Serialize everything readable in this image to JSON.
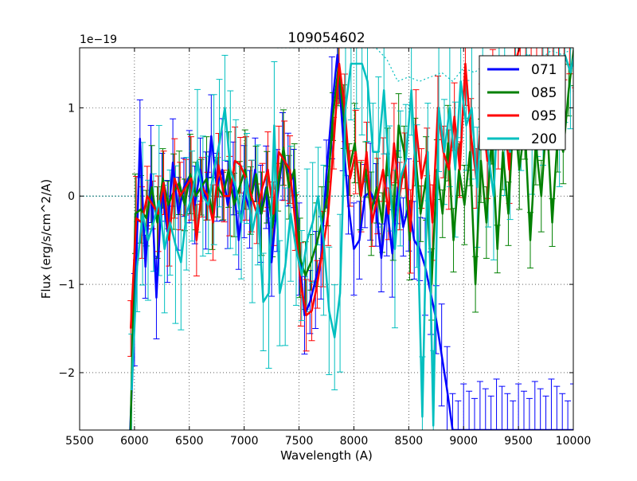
{
  "chart_data": {
    "type": "line",
    "title": "109054602",
    "xlabel": "Wavelength (A)",
    "ylabel": "Flux (erg/s/cm^2/A)",
    "offset_text": "1e−19",
    "xlim": [
      5500,
      10000
    ],
    "ylim": [
      -2.65,
      1.68
    ],
    "xticks": [
      5500,
      6000,
      6500,
      7000,
      7500,
      8000,
      8500,
      9000,
      9500,
      10000
    ],
    "yticks": [
      -2,
      -1,
      0,
      1
    ],
    "ytick_labels": [
      "−2",
      "−1",
      "0",
      "1"
    ],
    "grid": true,
    "legend_position": "top-right",
    "x": [
      5950,
      6000,
      6050,
      6100,
      6150,
      6200,
      6250,
      6300,
      6350,
      6400,
      6450,
      6500,
      6550,
      6600,
      6650,
      6700,
      6750,
      6800,
      6850,
      6900,
      6950,
      7000,
      7050,
      7100,
      7150,
      7200,
      7250,
      7300,
      7350,
      7400,
      7450,
      7500,
      7550,
      7600,
      7650,
      7700,
      7750,
      7800,
      7850,
      7900,
      7950,
      8000,
      8050,
      8100,
      8150,
      8200,
      8250,
      8300,
      8350,
      8400,
      8450,
      8500,
      8550,
      8600,
      8650,
      8700,
      8750,
      8800,
      8850,
      8900,
      8950,
      9000,
      9050,
      9100,
      9150,
      9200,
      9250,
      9300,
      9350,
      9400,
      9450,
      9500,
      9550,
      9600,
      9650,
      9700,
      9750,
      9800,
      9850,
      9900,
      9950,
      10000
    ],
    "series": [
      {
        "name": "071",
        "color": "#0000ff",
        "values": [
          -3.0,
          -1.4,
          0.65,
          -0.8,
          0.25,
          -1.15,
          0.1,
          -0.4,
          0.38,
          -0.2,
          0.1,
          0.22,
          -0.1,
          0.3,
          -0.05,
          0.68,
          0.1,
          0.3,
          -0.1,
          0.2,
          -0.5,
          0.05,
          -0.15,
          0.3,
          -0.2,
          0.1,
          -0.75,
          -0.05,
          0.45,
          0.3,
          0.2,
          -0.6,
          -1.35,
          -1.2,
          -0.95,
          -0.7,
          0.25,
          1.0,
          1.6,
          0.7,
          -0.1,
          -0.6,
          -0.5,
          0.0,
          0.05,
          -0.1,
          -0.7,
          -0.1,
          -0.65,
          0.1,
          -0.35,
          -0.1,
          -0.5,
          -0.6,
          -0.8,
          -1.1,
          -1.4,
          -1.8,
          -2.2,
          -2.65,
          -2.65,
          -2.65,
          -2.65,
          -2.65,
          -2.65,
          -2.65,
          -2.65,
          -2.65,
          -2.65,
          -2.65,
          -2.65,
          -2.65,
          -2.65,
          -2.65,
          -2.65,
          -2.65,
          -2.65,
          -2.65,
          -2.65,
          -2.65,
          -2.65,
          -2.65
        ]
      },
      {
        "name": "085",
        "color": "#008000",
        "values": [
          -3.0,
          -0.2,
          -0.15,
          -0.25,
          0.1,
          -0.3,
          0.2,
          -0.1,
          0.05,
          0.15,
          -0.1,
          0.25,
          0.0,
          0.1,
          0.2,
          -0.2,
          0.1,
          0.0,
          0.3,
          -0.1,
          0.1,
          0.3,
          -0.05,
          0.25,
          -0.2,
          0.1,
          -0.35,
          0.1,
          0.55,
          0.1,
          0.3,
          -0.7,
          -0.9,
          -0.75,
          -0.55,
          -0.3,
          0.0,
          0.9,
          1.45,
          0.9,
          0.3,
          0.6,
          0.0,
          0.3,
          -0.2,
          0.1,
          -0.3,
          0.5,
          -0.3,
          0.8,
          0.5,
          -0.5,
          0.5,
          -0.2,
          0.2,
          -1.0,
          0.3,
          -0.2,
          0.6,
          -0.5,
          0.3,
          -0.1,
          0.5,
          -1.0,
          0.4,
          -0.3,
          0.7,
          -0.6,
          0.5,
          -0.2,
          1.0,
          0.3,
          0.8,
          -0.5,
          0.6,
          0.0,
          0.9,
          -0.3,
          0.7,
          0.5,
          1.2,
          1.7
        ]
      },
      {
        "name": "095",
        "color": "#ff0000",
        "values": [
          -1.5,
          -0.25,
          -0.3,
          0.0,
          -0.1,
          -0.2,
          0.15,
          -0.5,
          0.2,
          0.0,
          0.1,
          0.2,
          -0.5,
          0.1,
          0.0,
          -0.3,
          0.35,
          0.0,
          0.0,
          0.4,
          0.35,
          0.2,
          0.0,
          -0.2,
          0.1,
          0.3,
          -0.2,
          0.5,
          0.4,
          0.3,
          -0.3,
          -1.0,
          -1.35,
          -1.3,
          -1.0,
          -0.6,
          -0.2,
          0.6,
          1.5,
          1.0,
          0.2,
          0.5,
          0.0,
          0.5,
          -0.3,
          0.0,
          0.3,
          -0.2,
          0.6,
          0.0,
          0.4,
          -0.4,
          0.8,
          0.2,
          0.5,
          -0.3,
          1.0,
          0.5,
          0.3,
          0.9,
          0.3,
          1.5,
          0.7,
          0.2,
          1.0,
          0.4,
          1.3,
          0.6,
          1.0,
          0.3,
          1.5,
          1.7,
          1.7,
          1.7,
          1.7,
          1.7,
          1.7,
          1.7,
          1.7,
          1.7,
          1.7,
          1.7
        ]
      },
      {
        "name": "200",
        "color": "#00bfbf",
        "values": [
          -2.2,
          -0.8,
          -0.2,
          -0.5,
          -0.3,
          -0.05,
          -0.6,
          -0.3,
          -0.55,
          -0.75,
          -0.2,
          0.0,
          0.4,
          0.0,
          -0.1,
          0.3,
          0.6,
          1.0,
          0.3,
          0.1,
          -0.3,
          0.2,
          -0.4,
          -0.1,
          -1.2,
          -1.1,
          0.8,
          -1.1,
          -0.8,
          -0.2,
          -0.6,
          -0.9,
          -0.5,
          -0.3,
          0.0,
          -0.5,
          -1.3,
          -1.6,
          -1.1,
          1.0,
          1.5,
          1.5,
          1.5,
          1.3,
          0.5,
          0.5,
          1.2,
          0.2,
          -0.6,
          0.2,
          0.4,
          1.2,
          0.0,
          -2.5,
          0.5,
          -2.6,
          1.0,
          0.5,
          1.0,
          0.3,
          1.3,
          0.8,
          1.0,
          0.1,
          1.2,
          0.5,
          0.0,
          1.4,
          0.9,
          0.5,
          1.5,
          0.8,
          1.6,
          0.7,
          1.0,
          1.2,
          1.5,
          1.3,
          1.0,
          1.6,
          1.4,
          1.7
        ]
      }
    ],
    "dotted_overlay": {
      "x": [
        7300,
        7500,
        7700,
        7900,
        8000,
        8100,
        8200,
        8300,
        8400,
        8500,
        8600,
        8700,
        8800,
        8900,
        9000,
        9100,
        9200,
        9300,
        9400,
        9500,
        9600,
        9700,
        9800,
        9900,
        10000
      ],
      "values": [
        1.68,
        1.68,
        1.68,
        1.68,
        1.68,
        1.68,
        1.68,
        1.55,
        1.3,
        1.35,
        1.3,
        1.35,
        1.4,
        1.3,
        1.45,
        1.4,
        1.5,
        1.45,
        1.55,
        1.5,
        1.6,
        1.55,
        1.65,
        1.6,
        1.68
      ]
    }
  }
}
